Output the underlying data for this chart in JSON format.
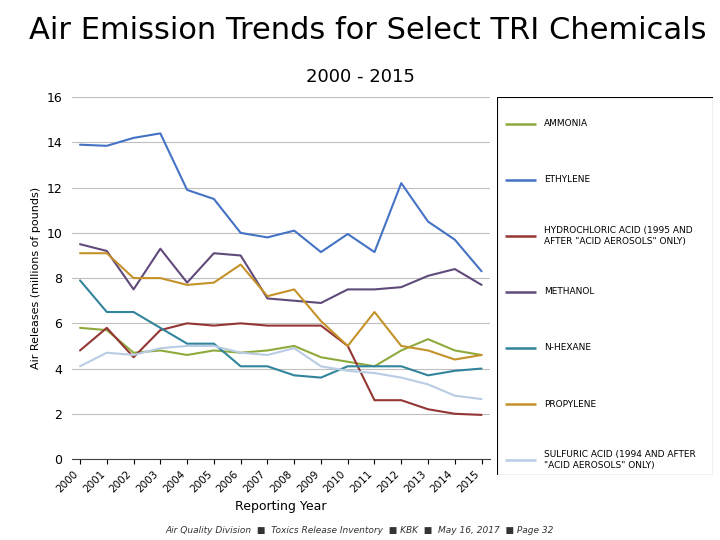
{
  "title": "Air Emission Trends for Select TRI Chemicals",
  "subtitle": "2000 - 2015",
  "xlabel": "Reporting Year",
  "ylabel": "Air Releases (millions of pounds)",
  "years": [
    2000,
    2001,
    2002,
    2003,
    2004,
    2005,
    2006,
    2007,
    2008,
    2009,
    2010,
    2011,
    2012,
    2013,
    2014,
    2015
  ],
  "series": [
    {
      "name": "AMMONIA",
      "legend_label": "AMMONIA",
      "color": "#8faa3c",
      "values": [
        5.8,
        5.7,
        4.7,
        4.8,
        4.6,
        4.8,
        4.7,
        4.8,
        5.0,
        4.5,
        4.3,
        4.1,
        4.8,
        5.3,
        4.8,
        4.6
      ]
    },
    {
      "name": "ETHYLENE",
      "legend_label": "ETHYLENE",
      "color": "#4472c4",
      "values": [
        13.9,
        13.85,
        14.2,
        14.4,
        11.9,
        11.5,
        10.0,
        9.8,
        10.1,
        9.15,
        9.95,
        9.15,
        12.2,
        10.5,
        9.7,
        8.3
      ]
    },
    {
      "name": "HYDROCHLORIC ACID",
      "legend_label": "HYDROCHLORIC ACID (1995 AND\nAFTER \"ACID AEROSOLS\" ONLY)",
      "color": "#943634",
      "values": [
        4.8,
        5.8,
        4.5,
        5.7,
        6.0,
        5.9,
        6.0,
        5.9,
        5.9,
        5.9,
        5.0,
        2.6,
        2.6,
        2.2,
        2.0,
        1.95
      ]
    },
    {
      "name": "METHANOL",
      "legend_label": "METHANOL",
      "color": "#604a7b",
      "values": [
        9.5,
        9.2,
        7.5,
        9.3,
        7.8,
        9.1,
        9.0,
        7.1,
        7.0,
        6.9,
        7.5,
        7.5,
        7.6,
        8.1,
        8.4,
        7.7
      ]
    },
    {
      "name": "N-HEXANE",
      "legend_label": "N-HEXANE",
      "color": "#31849b",
      "values": [
        7.9,
        6.5,
        6.5,
        5.8,
        5.1,
        5.1,
        4.1,
        4.1,
        3.7,
        3.6,
        4.1,
        4.1,
        4.1,
        3.7,
        3.9,
        4.0
      ]
    },
    {
      "name": "PROPYLENE",
      "legend_label": "PROPYLENE",
      "color": "#c5922a",
      "values": [
        9.1,
        9.1,
        8.0,
        8.0,
        7.7,
        7.8,
        8.6,
        7.2,
        7.5,
        6.1,
        5.0,
        6.5,
        5.0,
        4.8,
        4.4,
        4.6
      ]
    },
    {
      "name": "SULFURIC ACID",
      "legend_label": "SULFURIC ACID (1994 AND AFTER\n\"ACID AEROSOLS\" ONLY)",
      "color": "#b8cce4",
      "values": [
        4.1,
        4.7,
        4.6,
        4.9,
        5.0,
        5.0,
        4.7,
        4.6,
        4.9,
        4.1,
        3.9,
        3.8,
        3.6,
        3.3,
        2.8,
        2.65
      ]
    }
  ],
  "ylim": [
    0,
    16
  ],
  "yticks": [
    0,
    2,
    4,
    6,
    8,
    10,
    12,
    14,
    16
  ],
  "background_color": "#ffffff",
  "grid_color": "#bfbfbf",
  "title_fontsize": 22,
  "subtitle_fontsize": 13,
  "footer_text": "Air Quality Division  ■  Toxics Release Inventory  ■ KBK  ■  May 16, 2017  ■ Page 32"
}
